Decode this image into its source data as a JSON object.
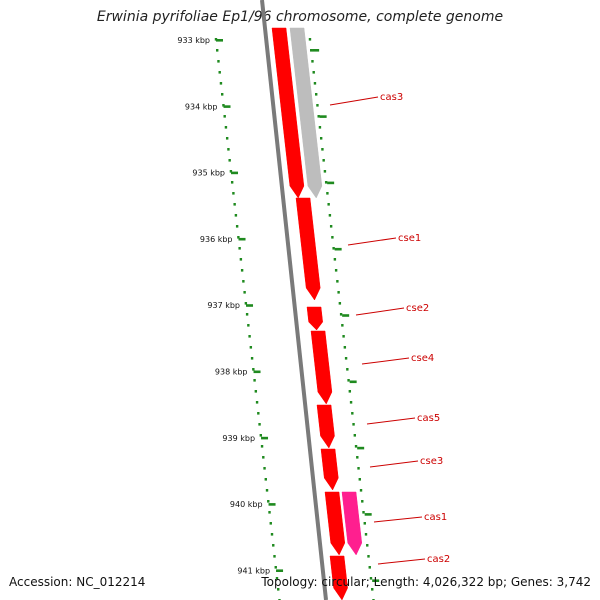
{
  "title": "Erwinia pyrifoliae Ep1/96 chromosome, complete genome",
  "footer": {
    "accession": "Accession: NC_012214",
    "topology": "Topology: circular; Length: 4,026,322 bp; Genes: 3,742"
  },
  "colors": {
    "backbone": "#7a7a7a",
    "tick": "#1f8a1f",
    "gene_red": "#ff0000",
    "gene_gray": "#bdbdbd",
    "gene_magenta": "#ff1f8f",
    "label": "#cc0000"
  },
  "ticks": [
    {
      "label": "933 kbp"
    },
    {
      "label": "934 kbp"
    },
    {
      "label": "935 kbp"
    },
    {
      "label": "936 kbp"
    },
    {
      "label": "937 kbp"
    },
    {
      "label": "938 kbp"
    },
    {
      "label": "939 kbp"
    },
    {
      "label": "940 kbp"
    },
    {
      "label": "941 kbp"
    }
  ],
  "genes": [
    {
      "label": "cas3",
      "color": "gene_red"
    },
    {
      "label": "cas3",
      "color": "gene_gray",
      "unlabeled": true
    },
    {
      "label": "cse1",
      "color": "gene_red"
    },
    {
      "label": "cse2",
      "color": "gene_red"
    },
    {
      "label": "cse4",
      "color": "gene_red"
    },
    {
      "label": "cas5",
      "color": "gene_red"
    },
    {
      "label": "cse3",
      "color": "gene_red"
    },
    {
      "label": "cas1",
      "color": "gene_red"
    },
    {
      "label": "cas1",
      "color": "gene_magenta",
      "unlabeled": true
    },
    {
      "label": "cas2",
      "color": "gene_red"
    }
  ],
  "labels": [
    "cas3",
    "cse1",
    "cse2",
    "cse4",
    "cas5",
    "cse3",
    "cas1",
    "cas2"
  ]
}
